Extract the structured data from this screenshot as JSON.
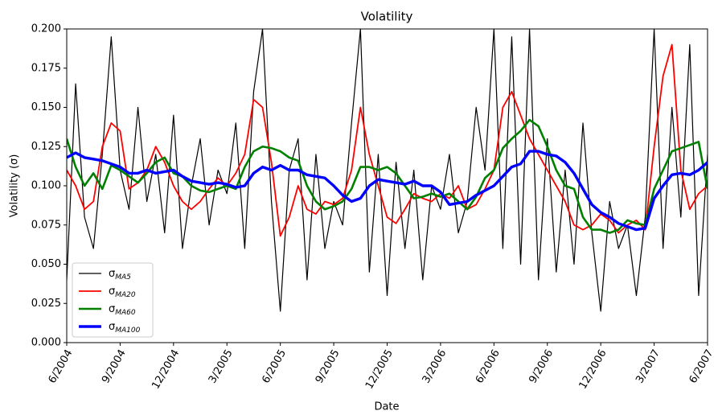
{
  "chart_data": {
    "type": "line",
    "title": "Volatility",
    "x_label": "Date",
    "y_label": "Volatility (σ)",
    "categories": [
      "6/2004",
      null,
      null,
      null,
      null,
      null,
      "9/2004",
      null,
      null,
      null,
      null,
      null,
      "12/2004",
      null,
      null,
      null,
      null,
      null,
      "3/2005",
      null,
      null,
      null,
      null,
      null,
      "6/2005",
      null,
      null,
      null,
      null,
      null,
      "9/2005",
      null,
      null,
      null,
      null,
      null,
      "12/2005",
      null,
      null,
      null,
      null,
      null,
      "3/2006",
      null,
      null,
      null,
      null,
      null,
      "6/2006",
      null,
      null,
      null,
      null,
      null,
      "9/2006",
      null,
      null,
      null,
      null,
      null,
      "12/2006",
      null,
      null,
      null,
      null,
      null,
      "3/2007",
      null,
      null,
      null,
      null,
      null,
      "6/2007"
    ],
    "ylim": [
      0,
      0.2
    ],
    "yticks": [
      {
        "value": 0,
        "label": "0.000"
      },
      {
        "value": 0.025,
        "label": "0.025"
      },
      {
        "value": 0.05,
        "label": "0.050"
      },
      {
        "value": 0.075,
        "label": "0.075"
      },
      {
        "value": 0.1,
        "label": "0.100"
      },
      {
        "value": 0.125,
        "label": "0.125"
      },
      {
        "value": 0.15,
        "label": "0.150"
      },
      {
        "value": 0.175,
        "label": "0.175"
      },
      {
        "value": 0.2,
        "label": "0.200"
      }
    ],
    "legend": "lower left",
    "series": [
      {
        "name": "σMA5",
        "color": "#000000",
        "width": 1.2,
        "values": [
          0.04,
          0.165,
          0.08,
          0.06,
          0.12,
          0.195,
          0.11,
          0.085,
          0.15,
          0.09,
          0.12,
          0.07,
          0.145,
          0.06,
          0.1,
          0.13,
          0.075,
          0.11,
          0.095,
          0.14,
          0.06,
          0.16,
          0.2,
          0.09,
          0.02,
          0.11,
          0.13,
          0.04,
          0.12,
          0.06,
          0.09,
          0.075,
          0.14,
          0.2,
          0.045,
          0.12,
          0.03,
          0.115,
          0.06,
          0.11,
          0.04,
          0.1,
          0.085,
          0.12,
          0.07,
          0.09,
          0.15,
          0.11,
          0.2,
          0.06,
          0.195,
          0.05,
          0.2,
          0.04,
          0.13,
          0.045,
          0.11,
          0.05,
          0.14,
          0.07,
          0.02,
          0.09,
          0.06,
          0.075,
          0.03,
          0.08,
          0.2,
          0.06,
          0.15,
          0.08,
          0.19,
          0.03,
          0.12
        ]
      },
      {
        "name": "σMA20",
        "color": "#ff0000",
        "width": 1.8,
        "values": [
          0.11,
          0.1,
          0.085,
          0.09,
          0.125,
          0.14,
          0.135,
          0.098,
          0.102,
          0.11,
          0.125,
          0.115,
          0.1,
          0.09,
          0.085,
          0.09,
          0.098,
          0.105,
          0.1,
          0.108,
          0.12,
          0.155,
          0.15,
          0.115,
          0.068,
          0.08,
          0.1,
          0.085,
          0.082,
          0.09,
          0.088,
          0.092,
          0.11,
          0.15,
          0.12,
          0.1,
          0.08,
          0.076,
          0.085,
          0.095,
          0.092,
          0.09,
          0.095,
          0.092,
          0.1,
          0.085,
          0.088,
          0.098,
          0.11,
          0.15,
          0.16,
          0.145,
          0.13,
          0.12,
          0.11,
          0.1,
          0.09,
          0.075,
          0.072,
          0.075,
          0.082,
          0.078,
          0.07,
          0.075,
          0.078,
          0.072,
          0.125,
          0.17,
          0.19,
          0.11,
          0.085,
          0.095,
          0.1
        ]
      },
      {
        "name": "σMA60",
        "color": "#008000",
        "width": 2.6,
        "values": [
          0.13,
          0.112,
          0.1,
          0.108,
          0.098,
          0.113,
          0.11,
          0.106,
          0.102,
          0.108,
          0.115,
          0.118,
          0.108,
          0.106,
          0.1,
          0.097,
          0.096,
          0.098,
          0.1,
          0.098,
          0.112,
          0.122,
          0.125,
          0.124,
          0.122,
          0.118,
          0.116,
          0.1,
          0.09,
          0.085,
          0.087,
          0.09,
          0.098,
          0.112,
          0.112,
          0.11,
          0.112,
          0.108,
          0.1,
          0.092,
          0.093,
          0.095,
          0.093,
          0.095,
          0.09,
          0.085,
          0.093,
          0.105,
          0.11,
          0.124,
          0.13,
          0.135,
          0.142,
          0.138,
          0.125,
          0.11,
          0.1,
          0.098,
          0.08,
          0.072,
          0.072,
          0.07,
          0.072,
          0.078,
          0.076,
          0.075,
          0.098,
          0.11,
          0.122,
          0.124,
          0.126,
          0.128,
          0.098
        ]
      },
      {
        "name": "σMA100",
        "color": "#0000ff",
        "width": 3.4,
        "values": [
          0.118,
          0.121,
          0.118,
          0.117,
          0.116,
          0.114,
          0.112,
          0.108,
          0.108,
          0.11,
          0.108,
          0.109,
          0.11,
          0.106,
          0.103,
          0.102,
          0.101,
          0.102,
          0.101,
          0.099,
          0.1,
          0.108,
          0.112,
          0.11,
          0.113,
          0.11,
          0.11,
          0.107,
          0.106,
          0.105,
          0.1,
          0.094,
          0.09,
          0.092,
          0.1,
          0.104,
          0.103,
          0.102,
          0.101,
          0.103,
          0.1,
          0.1,
          0.096,
          0.088,
          0.089,
          0.09,
          0.094,
          0.097,
          0.1,
          0.106,
          0.112,
          0.114,
          0.122,
          0.122,
          0.12,
          0.119,
          0.115,
          0.108,
          0.098,
          0.088,
          0.083,
          0.08,
          0.076,
          0.074,
          0.072,
          0.073,
          0.092,
          0.1,
          0.107,
          0.108,
          0.107,
          0.11,
          0.115
        ]
      }
    ]
  }
}
